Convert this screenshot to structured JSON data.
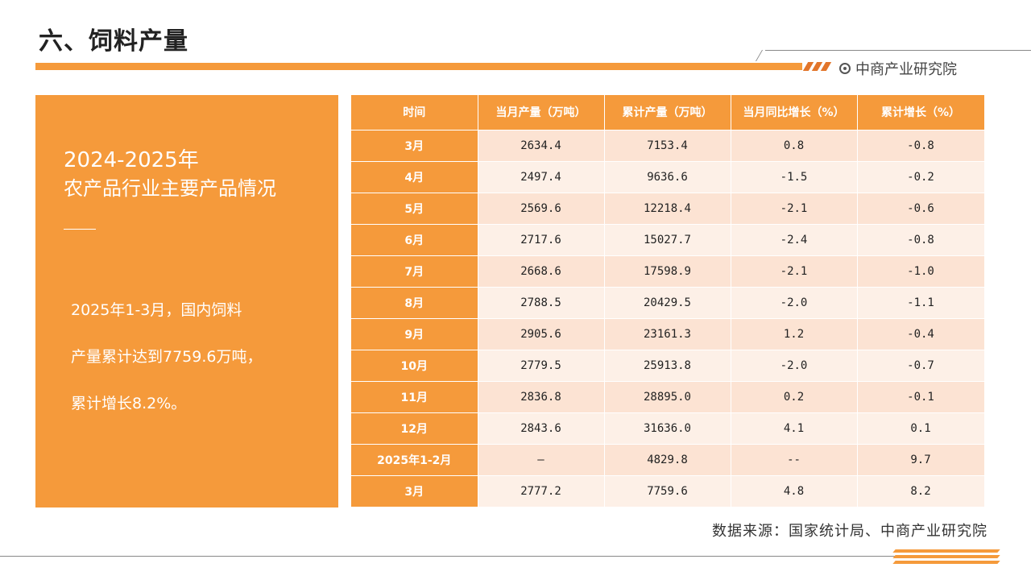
{
  "header": {
    "title": "六、饲料产量",
    "brand": "中商产业研究院",
    "accent_color": "#F59A3B"
  },
  "panel": {
    "year": "2024-2025年",
    "heading": "农产品行业主要产品情况",
    "lines": [
      "2025年1-3月，国内饲料",
      "产量累计达到7759.6万吨，",
      "累计增长8.2%。"
    ]
  },
  "table": {
    "headers": [
      "时间",
      "当月产量（万吨）",
      "累计产量（万吨）",
      "当月同比增长（%）",
      "累计增长（%）"
    ],
    "rows": [
      [
        "3月",
        "2634.4",
        "7153.4",
        "0.8",
        "-0.8"
      ],
      [
        "4月",
        "2497.4",
        "9636.6",
        "-1.5",
        "-0.2"
      ],
      [
        "5月",
        "2569.6",
        "12218.4",
        "-2.1",
        "-0.6"
      ],
      [
        "6月",
        "2717.6",
        "15027.7",
        "-2.4",
        "-0.8"
      ],
      [
        "7月",
        "2668.6",
        "17598.9",
        "-2.1",
        "-1.0"
      ],
      [
        "8月",
        "2788.5",
        "20429.5",
        "-2.0",
        "-1.1"
      ],
      [
        "9月",
        "2905.6",
        "23161.3",
        "1.2",
        "-0.4"
      ],
      [
        "10月",
        "2779.5",
        "25913.8",
        "-2.0",
        "-0.7"
      ],
      [
        "11月",
        "2836.8",
        "28895.0",
        "0.2",
        "-0.1"
      ],
      [
        "12月",
        "2843.6",
        "31636.0",
        "4.1",
        "0.1"
      ],
      [
        "2025年1-2月",
        "—",
        "4829.8",
        "--",
        "9.7"
      ],
      [
        "3月",
        "2777.2",
        "7759.6",
        "4.8",
        "8.2"
      ]
    ]
  },
  "footer": {
    "source": "数据来源：国家统计局、中商产业研究院"
  }
}
